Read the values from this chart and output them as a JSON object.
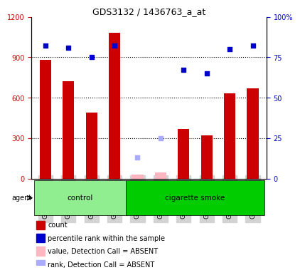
{
  "title": "GDS3132 / 1436763_a_at",
  "samples": [
    "GSM176495",
    "GSM176496",
    "GSM176497",
    "GSM176498",
    "GSM176499",
    "GSM176500",
    "GSM176501",
    "GSM176502",
    "GSM176503",
    "GSM176504"
  ],
  "bar_values": [
    880,
    720,
    490,
    1080,
    null,
    null,
    370,
    320,
    630,
    670
  ],
  "bar_absent_values": [
    null,
    null,
    null,
    null,
    30,
    45,
    null,
    null,
    null,
    null
  ],
  "rank_values": [
    82,
    81,
    75,
    82,
    null,
    null,
    67,
    65,
    80,
    82
  ],
  "rank_absent_values": [
    null,
    null,
    null,
    null,
    13,
    25,
    null,
    null,
    null,
    null
  ],
  "groups": [
    {
      "label": "control",
      "start": 0,
      "end": 4,
      "color": "#90EE90"
    },
    {
      "label": "cigarette smoke",
      "start": 4,
      "end": 10,
      "color": "#00CC00"
    }
  ],
  "ylim_left": [
    0,
    1200
  ],
  "ylim_right": [
    0,
    100
  ],
  "yticks_left": [
    0,
    300,
    600,
    900,
    1200
  ],
  "yticks_right": [
    0,
    25,
    50,
    75,
    100
  ],
  "yticklabels_left": [
    "0",
    "300",
    "600",
    "900",
    "1200"
  ],
  "yticklabels_right": [
    "0",
    "25",
    "50",
    "75",
    "100%"
  ],
  "bar_color": "#CC0000",
  "absent_bar_color": "#FFB6C1",
  "rank_color": "#0000CC",
  "rank_absent_color": "#AAAAFF",
  "bar_width": 0.5,
  "agent_label": "agent",
  "legend_items": [
    {
      "color": "#CC0000",
      "label": "count"
    },
    {
      "color": "#0000CC",
      "label": "percentile rank within the sample"
    },
    {
      "color": "#FFB6C1",
      "label": "value, Detection Call = ABSENT"
    },
    {
      "color": "#AAAAFF",
      "label": "rank, Detection Call = ABSENT"
    }
  ]
}
